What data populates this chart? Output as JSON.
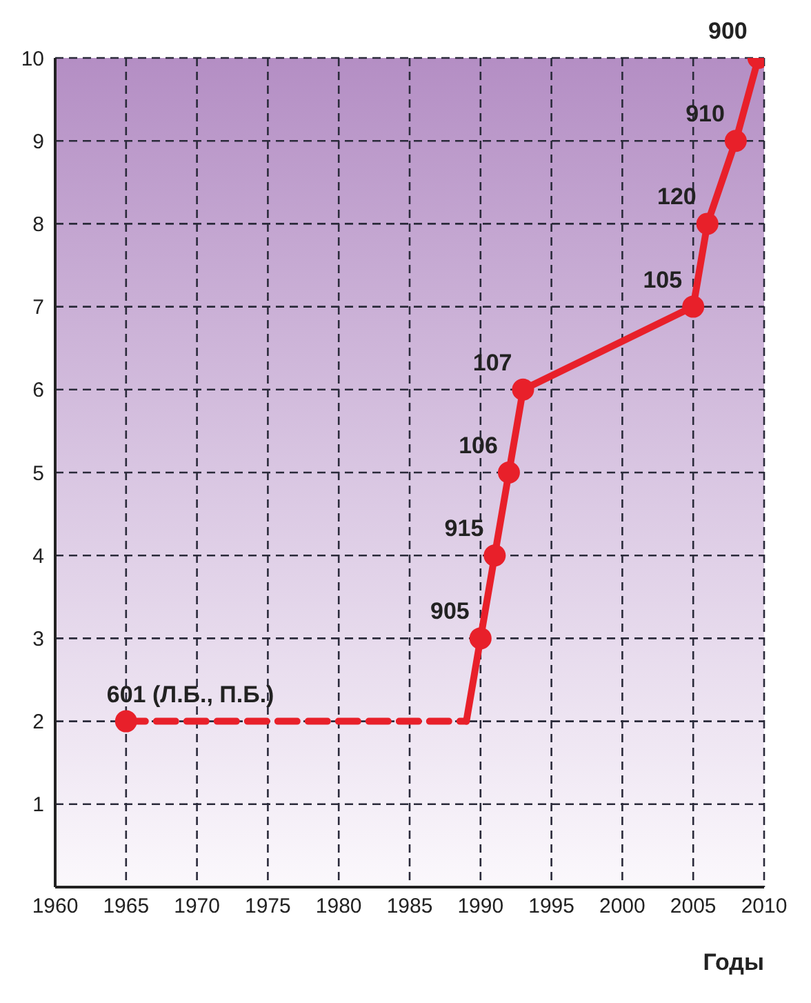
{
  "chart_data": {
    "type": "line",
    "xlabel": "Годы",
    "xlim": [
      1960,
      2010
    ],
    "xticks": [
      1960,
      1965,
      1970,
      1975,
      1980,
      1985,
      1990,
      1995,
      2000,
      2005,
      2010
    ],
    "ylim": [
      0,
      10
    ],
    "yticks": [
      1,
      2,
      3,
      4,
      5,
      6,
      7,
      8,
      9,
      10
    ],
    "grid": true,
    "series": [
      {
        "color": "#e8202a",
        "x": [
          1965,
          1989
        ],
        "values": [
          2,
          2
        ],
        "line_style": "dashed",
        "marker": "none"
      },
      {
        "color": "#e8202a",
        "x": [
          1989,
          1990,
          1991,
          1992,
          1993,
          2005,
          2006,
          2008,
          2009.6
        ],
        "values": [
          2,
          3,
          4,
          5,
          6,
          7,
          8,
          9,
          10
        ],
        "line_style": "solid",
        "marker": "none"
      },
      {
        "type": "scatter",
        "color": "#e8202a",
        "x": [
          1965,
          1990,
          1991,
          1992,
          1993,
          2005,
          2006,
          2008,
          2009.6
        ],
        "values": [
          2,
          3,
          4,
          5,
          6,
          7,
          8,
          9,
          10
        ],
        "marker": "circle"
      }
    ],
    "annotations": [
      {
        "text": "601 (Л.Б., П.Б.)",
        "x": 1965,
        "y": 2
      },
      {
        "text": "905",
        "x": 1990,
        "y": 3
      },
      {
        "text": "915",
        "x": 1991,
        "y": 4
      },
      {
        "text": "106",
        "x": 1992,
        "y": 5
      },
      {
        "text": "107",
        "x": 1993,
        "y": 6
      },
      {
        "text": "105",
        "x": 2005,
        "y": 7
      },
      {
        "text": "120",
        "x": 2006,
        "y": 8
      },
      {
        "text": "910",
        "x": 2008,
        "y": 9
      },
      {
        "text": "900",
        "x": 2009.6,
        "y": 10
      }
    ]
  }
}
